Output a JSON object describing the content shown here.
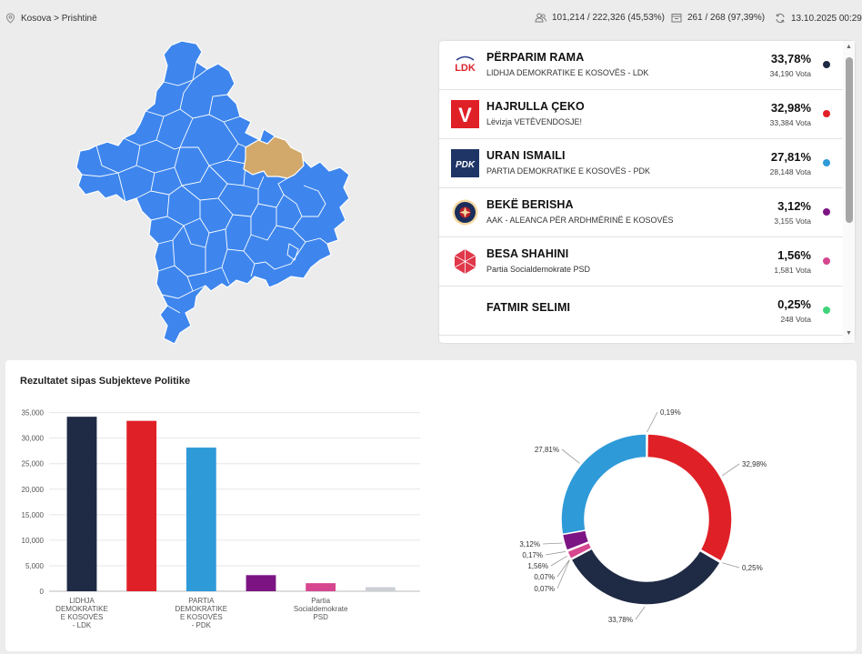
{
  "breadcrumb": "Kosova > Prishtinë",
  "stats": {
    "voters": "101,214 / 222,326 (45,53%)",
    "stations": "261 / 268 (97,39%)",
    "updated": "13.10.2025 00:29"
  },
  "colors": {
    "map_fill": "#3e86ee",
    "map_highlight": "#d2a96a",
    "ldk": "#1f2a44",
    "vv": "#e02027",
    "pdk": "#2e9ad8",
    "aak": "#7c1583",
    "psd": "#d6478f",
    "selimi": "#3fd47a"
  },
  "candidates": [
    {
      "name": "PËRPARIM RAMA",
      "party": "LIDHJA DEMOKRATIKE E KOSOVËS - LDK",
      "pct": "33,78%",
      "votes": "34,190 Vota",
      "logo": "ldk-logo",
      "logo_text": "LDK",
      "color": "#1f2a44"
    },
    {
      "name": "HAJRULLA ÇEKO",
      "party": "Lëvizja VETËVENDOSJE!",
      "pct": "32,98%",
      "votes": "33,384 Vota",
      "logo": "vv-logo",
      "logo_text": "V",
      "color": "#e02027"
    },
    {
      "name": "URAN ISMAILI",
      "party": "PARTIA DEMOKRATIKE E KOSOVËS - PDK",
      "pct": "27,81%",
      "votes": "28,148 Vota",
      "logo": "pdk-logo",
      "logo_text": "PDK",
      "color": "#2e9ad8"
    },
    {
      "name": "BEKË BERISHA",
      "party": "AAK - ALEANCA PËR ARDHMËRINË E KOSOVËS",
      "pct": "3,12%",
      "votes": "3,155 Vota",
      "logo": "aak-logo",
      "logo_text": "",
      "color": "#7c1583"
    },
    {
      "name": "BESA SHAHINI",
      "party": "Partia Socialdemokrate PSD",
      "pct": "1,56%",
      "votes": "1,581 Vota",
      "logo": "psd-logo",
      "logo_text": "",
      "color": "#d6478f"
    },
    {
      "name": "FATMIR SELIMI",
      "party": "",
      "pct": "0,25%",
      "votes": "248 Vota",
      "logo": "",
      "logo_text": "",
      "color": "#3fd47a"
    }
  ],
  "chart_section_title": "Rezultatet sipas Subjekteve Politike",
  "chart_data": [
    {
      "type": "bar",
      "categories": [
        "LIDHJA DEMOKRATIKE E KOSOVËS - LDK",
        "",
        "PARTIA DEMOKRATIKE E KOSOVËS - PDK",
        "",
        "Partia Socialdemokrate PSD",
        ""
      ],
      "category_label_lines": [
        [
          "LIDHJA",
          "DEMOKRATIKE",
          "E KOSOVËS",
          "- LDK"
        ],
        [],
        [
          "PARTIA",
          "DEMOKRATIKE",
          "E KOSOVËS",
          "- PDK"
        ],
        [],
        [
          "Partia",
          "Socialdemokrate",
          "PSD"
        ],
        []
      ],
      "values": [
        34190,
        33384,
        28148,
        3155,
        1581,
        800
      ],
      "colors": [
        "#1f2a44",
        "#e02027",
        "#2e9ad8",
        "#7c1583",
        "#d6478f",
        "#ccd0d5"
      ],
      "yticks": [
        0,
        5000,
        10000,
        15000,
        20000,
        25000,
        30000,
        35000
      ],
      "ytick_labels": [
        "0",
        "5,000",
        "10,000",
        "15,000",
        "20,000",
        "25,000",
        "30,000",
        "35,000"
      ],
      "ylim": [
        0,
        36000
      ],
      "grid": true
    },
    {
      "type": "pie",
      "donut": true,
      "slices": [
        {
          "value": 0.19,
          "label": "0,19%",
          "color": "#d3d3d3"
        },
        {
          "value": 32.98,
          "label": "32,98%",
          "color": "#e02027"
        },
        {
          "value": 0.25,
          "label": "0,25%",
          "color": "#3fd47a"
        },
        {
          "value": 33.78,
          "label": "33,78%",
          "color": "#1f2a44"
        },
        {
          "value": 0.07,
          "label": "0,07%",
          "color": "#f2a65a"
        },
        {
          "value": 0.07,
          "label": "0,07%",
          "color": "#9cc5e8"
        },
        {
          "value": 1.56,
          "label": "1,56%",
          "color": "#d6478f"
        },
        {
          "value": 0.17,
          "label": "0,17%",
          "color": "#a0a0a0"
        },
        {
          "value": 3.12,
          "label": "3,12%",
          "color": "#7c1583"
        },
        {
          "value": 27.81,
          "label": "27,81%",
          "color": "#2e9ad8"
        }
      ]
    }
  ]
}
